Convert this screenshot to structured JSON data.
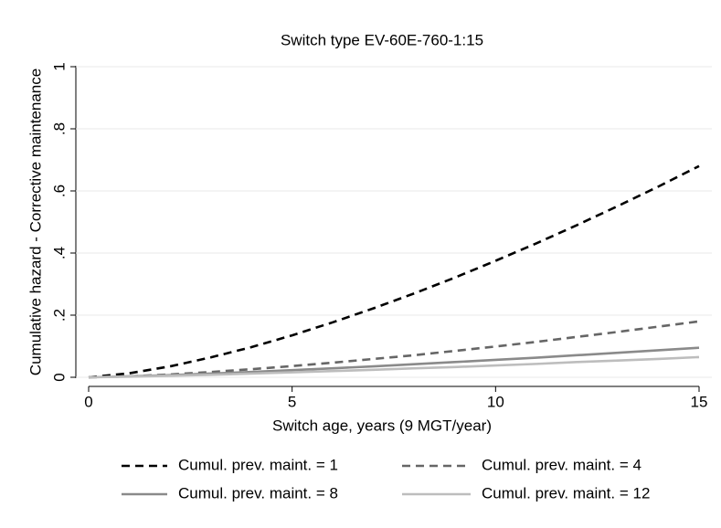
{
  "chart_data": {
    "type": "line",
    "title": "Switch type EV-60E-760-1:15",
    "x_label": "Switch age, years (9 MGT/year)",
    "y_label": "Cumulative hazard - Corrective maintenance",
    "x": [
      0,
      1,
      2,
      3,
      4,
      5,
      6,
      7,
      8,
      9,
      10,
      11,
      12,
      13,
      14,
      15
    ],
    "series": [
      {
        "name": "Cumul. prev. maint. = 1",
        "color": "#000000",
        "dash": true,
        "values": [
          0,
          0.013,
          0.035,
          0.064,
          0.097,
          0.135,
          0.177,
          0.222,
          0.27,
          0.321,
          0.375,
          0.431,
          0.49,
          0.551,
          0.614,
          0.68
        ]
      },
      {
        "name": "Cumul. prev. maint. = 4",
        "color": "#666666",
        "dash": true,
        "values": [
          0,
          0.003,
          0.009,
          0.017,
          0.026,
          0.036,
          0.047,
          0.059,
          0.071,
          0.085,
          0.099,
          0.114,
          0.13,
          0.146,
          0.163,
          0.18
        ]
      },
      {
        "name": "Cumul. prev. maint. = 8",
        "color": "#8a8a8a",
        "dash": false,
        "values": [
          0,
          0.003,
          0.007,
          0.012,
          0.017,
          0.023,
          0.029,
          0.035,
          0.042,
          0.049,
          0.056,
          0.063,
          0.071,
          0.079,
          0.087,
          0.095
        ]
      },
      {
        "name": "Cumul. prev. maint. = 12",
        "color": "#bdbdbd",
        "dash": false,
        "values": [
          0,
          0.002,
          0.005,
          0.008,
          0.012,
          0.016,
          0.02,
          0.024,
          0.029,
          0.033,
          0.038,
          0.043,
          0.049,
          0.054,
          0.059,
          0.065
        ]
      }
    ],
    "xlim": [
      0,
      15
    ],
    "xticks": [
      0,
      5,
      10,
      15
    ],
    "ylim": [
      0,
      1
    ],
    "yticks": [
      0,
      {
        "value": 0.2,
        "label": ".2"
      },
      {
        "value": 0.4,
        "label": ".4"
      },
      {
        "value": 0.6,
        "label": ".6"
      },
      {
        "value": 0.8,
        "label": ".8"
      },
      1
    ],
    "grid": true,
    "legend_position": "bottom"
  }
}
